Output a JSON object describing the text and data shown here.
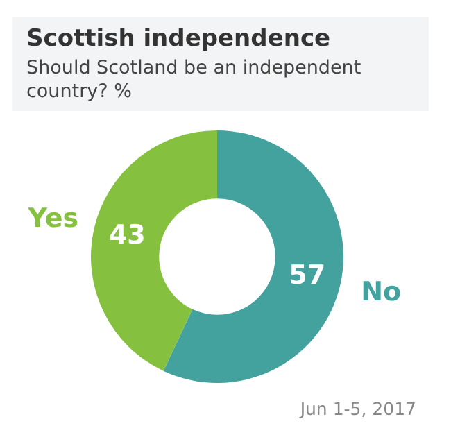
{
  "chart_data": {
    "type": "donut",
    "title": "Scottish independence",
    "subtitle": "Should Scotland be an independent country? %",
    "categories": [
      "No",
      "Yes"
    ],
    "values": [
      57,
      43
    ],
    "colors": [
      "#43a19e",
      "#85c13f"
    ],
    "data_labels": true,
    "legend": false,
    "annotations": [
      "Jun 1-5, 2017"
    ]
  }
}
